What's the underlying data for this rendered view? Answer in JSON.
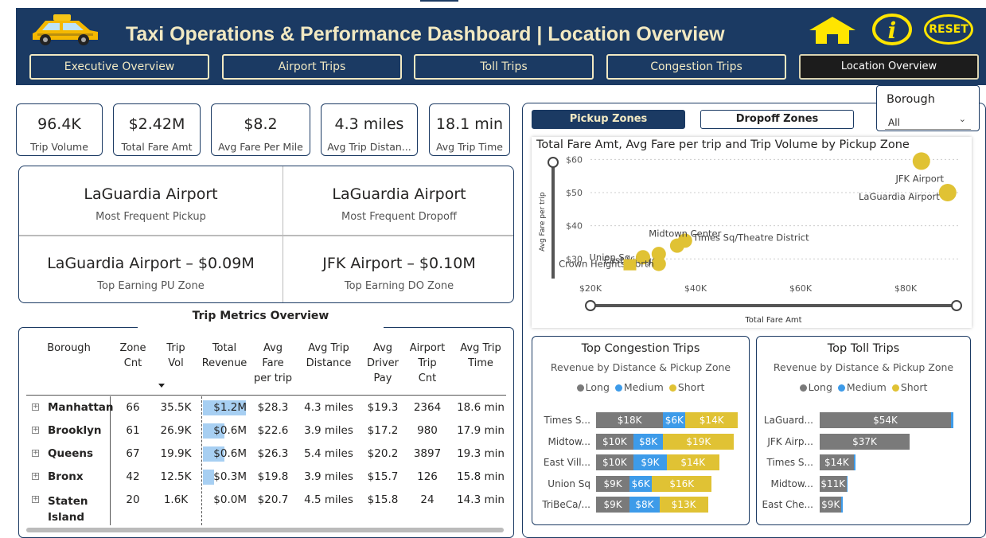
{
  "header": {
    "title": "Taxi Operations & Performance Dashboard | Location Overview",
    "nav": [
      "Executive Overview",
      "Airport Trips",
      "Toll Trips",
      "Congestion Trips",
      "Location Overview"
    ],
    "reset_label": "RESET"
  },
  "kpis": [
    {
      "value": "96.4K",
      "label": "Trip Volume"
    },
    {
      "value": "$2.42M",
      "label": "Total Fare Amt"
    },
    {
      "value": "$8.2",
      "label": "Avg Fare Per Mile"
    },
    {
      "value": "4.3 miles",
      "label": "Avg Trip Distan..."
    },
    {
      "value": "18.1 min",
      "label": "Avg Trip Time"
    }
  ],
  "summary": [
    {
      "value": "LaGuardia Airport",
      "label": "Most Frequent Pickup"
    },
    {
      "value": "LaGuardia Airport",
      "label": "Most Frequent Dropoff"
    },
    {
      "value": "LaGuardia Airport – $0.09M",
      "label": "Top Earning PU Zone"
    },
    {
      "value": "JFK Airport – $0.10M",
      "label": "Top Earning DO Zone"
    }
  ],
  "table": {
    "title": "Trip Metrics Overview",
    "headers": [
      "Borough",
      "Zone\nCnt",
      "Trip\nVol",
      "Total\nRevenue",
      "Avg\nFare\nper trip",
      "Avg Trip\nDistance",
      "Avg\nDriver\nPay",
      "Airport\nTrip\nCnt",
      "Avg Trip\nTime"
    ],
    "rows": [
      {
        "borough": "Manhattan",
        "zone": "66",
        "vol": "35.5K",
        "rev": "$1.2M",
        "rev_fraction": 1.0,
        "fare": "$28.3",
        "dist": "4.3 miles",
        "pay": "$19.3",
        "airport": "2364",
        "time": "18.6 min"
      },
      {
        "borough": "Brooklyn",
        "zone": "61",
        "vol": "26.9K",
        "rev": "$0.6M",
        "rev_fraction": 0.5,
        "fare": "$22.6",
        "dist": "3.9 miles",
        "pay": "$17.2",
        "airport": "980",
        "time": "17.9 min"
      },
      {
        "borough": "Queens",
        "zone": "67",
        "vol": "19.9K",
        "rev": "$0.6M",
        "rev_fraction": 0.5,
        "fare": "$26.3",
        "dist": "5.4 miles",
        "pay": "$20.2",
        "airport": "3897",
        "time": "19.3 min"
      },
      {
        "borough": "Bronx",
        "zone": "42",
        "vol": "12.5K",
        "rev": "$0.3M",
        "rev_fraction": 0.25,
        "fare": "$19.8",
        "dist": "3.9 miles",
        "pay": "$15.7",
        "airport": "126",
        "time": "15.8 min"
      },
      {
        "borough": "Staten\nIsland",
        "zone": "20",
        "vol": "1.6K",
        "rev": "$0.0M",
        "rev_fraction": 0.0,
        "fare": "$20.7",
        "dist": "4.5 miles",
        "pay": "$15.8",
        "airport": "24",
        "time": "14.3 min"
      }
    ]
  },
  "toggles": {
    "pickup": "Pickup Zones",
    "dropoff": "Dropoff Zones"
  },
  "borough_filter": {
    "label": "Borough",
    "value": "All"
  },
  "chart_data": [
    {
      "type": "scatter",
      "title": "Total Fare Amt, Avg Fare per trip and Trip Volume by Pickup Zone",
      "xlabel": "Total Fare Amt",
      "ylabel": "Avg Fare per trip",
      "xlim": [
        20000,
        90000
      ],
      "ylim": [
        26,
        62
      ],
      "xticks": [
        "$20K",
        "$40K",
        "$60K",
        "$80K"
      ],
      "yticks": [
        "$30",
        "$40",
        "$50",
        "$60"
      ],
      "points": [
        {
          "label": "JFK Airport",
          "x": 83000,
          "y": 59.5
        },
        {
          "label": "LaGuardia Airport",
          "x": 88000,
          "y": 50
        },
        {
          "label": "Midtown Center",
          "x": 38000,
          "y": 35.5
        },
        {
          "label": "Times Sq/Theatre District",
          "x": 36500,
          "y": 34
        },
        {
          "label": "East Village",
          "x": 33000,
          "y": 31.5
        },
        {
          "label": "Union Sq",
          "x": 30000,
          "y": 30.5
        },
        {
          "label": "Crown Heights North",
          "x": 33000,
          "y": 28.5
        },
        {
          "label": "",
          "x": 27500,
          "y": 28
        }
      ]
    },
    {
      "type": "bar",
      "title": "Top Congestion Trips",
      "subtitle": "Revenue by Distance & Pickup Zone",
      "legend": [
        "Long",
        "Medium",
        "Short"
      ],
      "categories": [
        "Times S...",
        "Midtow...",
        "East Vill...",
        "Union Sq",
        "TriBeCa/..."
      ],
      "series": [
        {
          "name": "Long",
          "values": [
            18,
            10,
            10,
            9,
            9
          ],
          "labels": [
            "$18K",
            "$10K",
            "$10K",
            "$9K",
            "$9K"
          ]
        },
        {
          "name": "Medium",
          "values": [
            6,
            8,
            9,
            6,
            8
          ],
          "labels": [
            "$6K",
            "$8K",
            "$9K",
            "$6K",
            "$8K"
          ]
        },
        {
          "name": "Short",
          "values": [
            14,
            19,
            14,
            16,
            13
          ],
          "labels": [
            "$14K",
            "$19K",
            "$14K",
            "$16K",
            "$13K"
          ]
        }
      ]
    },
    {
      "type": "bar",
      "title": "Top Toll Trips",
      "subtitle": "Revenue by Distance & Pickup Zone",
      "legend": [
        "Long",
        "Medium",
        "Short"
      ],
      "categories": [
        "LaGuard...",
        "JFK Airp...",
        "Times S...",
        "Midtow...",
        "East Che..."
      ],
      "series": [
        {
          "name": "Long",
          "values": [
            54,
            37,
            14,
            11,
            9
          ],
          "labels": [
            "$54K",
            "$37K",
            "$14K",
            "$11K",
            "$9K"
          ]
        },
        {
          "name": "Medium",
          "values": [
            1,
            0,
            0.6,
            0.6,
            0.6
          ],
          "labels": [
            "",
            "",
            "",
            "",
            ""
          ]
        },
        {
          "name": "Short",
          "values": [
            0,
            0,
            0,
            0,
            0
          ],
          "labels": [
            "",
            "",
            "",
            "",
            ""
          ]
        }
      ]
    }
  ],
  "colors": {
    "navy": "#1b3a63",
    "cream": "#f2e9c2",
    "gold": "#e0c234",
    "long": "#7a7a7a",
    "medium": "#3d9be9",
    "short": "#e0c234",
    "yellow": "#f5d90a"
  }
}
